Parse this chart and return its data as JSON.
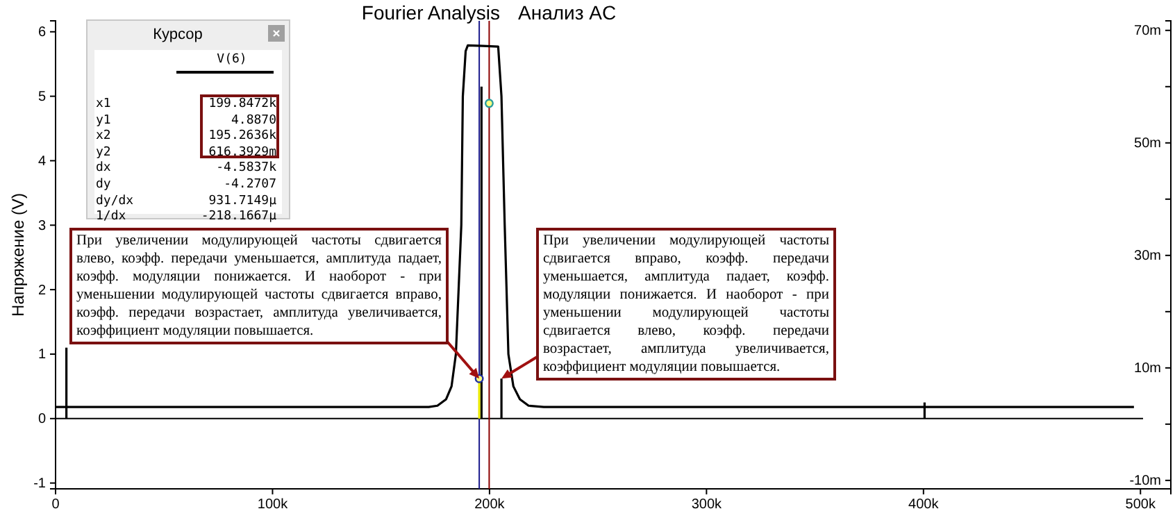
{
  "chart_data": {
    "type": "line",
    "title": "Fourier Analysis",
    "subtitle": "Анализ AC",
    "ylabel": "Напряжение (V)",
    "xlim": [
      0,
      514000
    ],
    "ylim": [
      -1.09,
      6.17
    ],
    "y2lim": [
      -11.5,
      71.7
    ],
    "xticks": [
      {
        "value": 0,
        "label": "0"
      },
      {
        "value": 100000,
        "label": "100k"
      },
      {
        "value": 200000,
        "label": "200k"
      },
      {
        "value": 300000,
        "label": "300k"
      },
      {
        "value": 400000,
        "label": "400k"
      },
      {
        "value": 500000,
        "label": "500k"
      }
    ],
    "yticks": [
      -1,
      0,
      1,
      2,
      3,
      4,
      5,
      6
    ],
    "y2ticks": [
      {
        "value": -10,
        "label": "-10m"
      },
      {
        "value": 0,
        "label": null
      },
      {
        "value": 10,
        "label": "10m"
      },
      {
        "value": 20,
        "label": null
      },
      {
        "value": 30,
        "label": "30m"
      },
      {
        "value": 40,
        "label": null
      },
      {
        "value": 50,
        "label": "50m"
      },
      {
        "value": 60,
        "label": null
      },
      {
        "value": 70,
        "label": "70m"
      }
    ],
    "line_style": "solid",
    "series": [
      {
        "color": "#000000",
        "x": [
          0,
          172000,
          176000,
          180000,
          182500,
          184500,
          187000,
          187700,
          189000,
          190000,
          197000,
          204000,
          205500,
          207000,
          208700,
          211000,
          214000,
          218000,
          225000,
          497000
        ],
        "values": [
          0.18,
          0.18,
          0.2,
          0.3,
          0.5,
          1,
          3,
          5,
          5.7,
          5.79,
          5.78,
          5.77,
          5,
          3,
          1,
          0.5,
          0.3,
          0.2,
          0.18,
          0.18
        ]
      },
      {
        "color": "#000000",
        "x": [
          5000,
          5000
        ],
        "values": [
          0,
          1.1
        ]
      },
      {
        "color": "#000000",
        "x": [
          196300,
          196300
        ],
        "values": [
          0,
          5.15
        ]
      },
      {
        "color": "#e8e800",
        "x": [
          195263.6,
          195263.6
        ],
        "values": [
          0,
          0.62
        ]
      },
      {
        "color": "#000000",
        "x": [
          205500,
          205500
        ],
        "values": [
          0,
          0.62
        ]
      },
      {
        "color": "#000000",
        "x": [
          400500,
          400500
        ],
        "values": [
          0,
          0.25
        ]
      },
      {
        "type": "scatter",
        "color": "#2a9d9d",
        "marker": "circle",
        "x": [
          199847.2
        ],
        "values": [
          4.89
        ]
      },
      {
        "type": "scatter",
        "color": "#2030a0",
        "marker": "circle",
        "x": [
          195263.6
        ],
        "values": [
          0.62
        ]
      }
    ],
    "ref_lines": [
      {
        "axis": "y",
        "value": 0,
        "color": "#000000"
      },
      {
        "axis": "x",
        "value": 199847.2,
        "color": "#8b0000"
      },
      {
        "axis": "x",
        "value": 195263.6,
        "color": "#1a1a8c"
      }
    ],
    "annotations": [
      "Курсор",
      "V(6)",
      "x1",
      "199.8472k",
      "y1",
      "4.8870",
      "x2",
      "195.2636k",
      "y2",
      "616.3929m",
      "dx",
      "-4.5837k",
      "dy",
      "-4.2707",
      "dy/dx",
      "931.7149µ",
      "1/dx",
      "-218.1667µ",
      {
        "text": "При увеличении модулирующей частоты сдвигается влево, коэфф. передачи уменьшается, амплитуда падает, коэфф. модуляции понижается. И наоборот - при уменьшении модулирующей частоты сдвигается вправо, коэфф. передачи возрастает, амплитуда увеличивается, коэффициент модуляции повышается.",
        "x": 195263.6,
        "y": 0.62
      },
      {
        "text": "При увеличении модулирующей частоты сдвигается вправо, коэфф. передачи уменьшается, амплитуда падает, коэфф. модуляции понижается. И наоборот - при уменьшении модулирующей частоты сдвигается влево, коэфф. передачи возрастает, амплитуда увеличивается, коэффициент модуляции повышается.",
        "x": 205500,
        "y": 0.62
      }
    ]
  }
}
